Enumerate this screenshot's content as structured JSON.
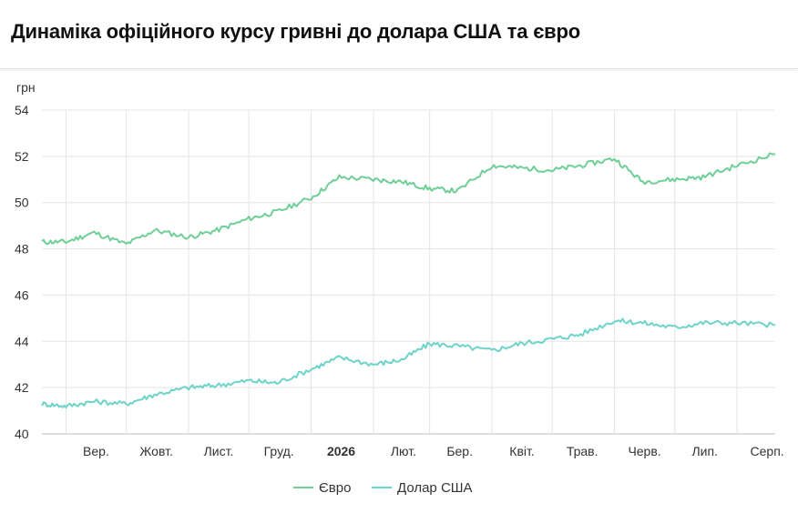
{
  "page": {
    "title": "Динаміка офіційного курсу гривні до долара США та євро"
  },
  "chart_data": {
    "type": "line",
    "title": "Динаміка офіційного курсу гривні до долара США та євро",
    "unit_label": "грн",
    "ylabel": "грн",
    "xlabel": "",
    "ylim": [
      40,
      54
    ],
    "yticks": [
      40,
      42,
      44,
      46,
      48,
      50,
      52,
      54
    ],
    "x_tick_labels": [
      "Вер.",
      "Жовт.",
      "Лист.",
      "Груд.",
      "2026",
      "Лют.",
      "Бер.",
      "Квіт.",
      "Трав.",
      "Черв.",
      "Лип.",
      "Серп."
    ],
    "x_tick_bold": [
      "2026"
    ],
    "x": [
      "2025-08-20",
      "2025-09-01",
      "2025-09-15",
      "2025-10-01",
      "2025-10-15",
      "2025-11-01",
      "2025-11-15",
      "2025-12-01",
      "2025-12-15",
      "2026-01-01",
      "2026-01-15",
      "2026-02-01",
      "2026-02-15",
      "2026-03-01",
      "2026-03-15",
      "2026-04-01",
      "2026-04-15",
      "2026-05-01",
      "2026-05-15",
      "2026-06-01",
      "2026-06-15",
      "2026-07-01",
      "2026-07-15",
      "2026-08-01",
      "2026-08-20"
    ],
    "grid": true,
    "legend_position": "bottom-center",
    "colors": {
      "euro": "#6fcf97",
      "usd": "#6ed3c8"
    },
    "series": [
      {
        "name": "Євро",
        "values": [
          48.3,
          48.3,
          48.7,
          48.2,
          48.8,
          48.5,
          48.8,
          49.3,
          49.6,
          50.2,
          51.1,
          51.0,
          50.9,
          50.6,
          50.5,
          51.6,
          51.5,
          51.4,
          51.6,
          51.9,
          50.9,
          51.0,
          51.1,
          51.6,
          52.1
        ]
      },
      {
        "name": "Долар США",
        "values": [
          41.3,
          41.2,
          41.4,
          41.3,
          41.7,
          42.0,
          42.1,
          42.3,
          42.2,
          42.8,
          43.3,
          43.0,
          43.2,
          43.9,
          43.8,
          43.6,
          43.9,
          44.1,
          44.3,
          44.9,
          44.8,
          44.6,
          44.8,
          44.8,
          44.7
        ]
      }
    ]
  }
}
